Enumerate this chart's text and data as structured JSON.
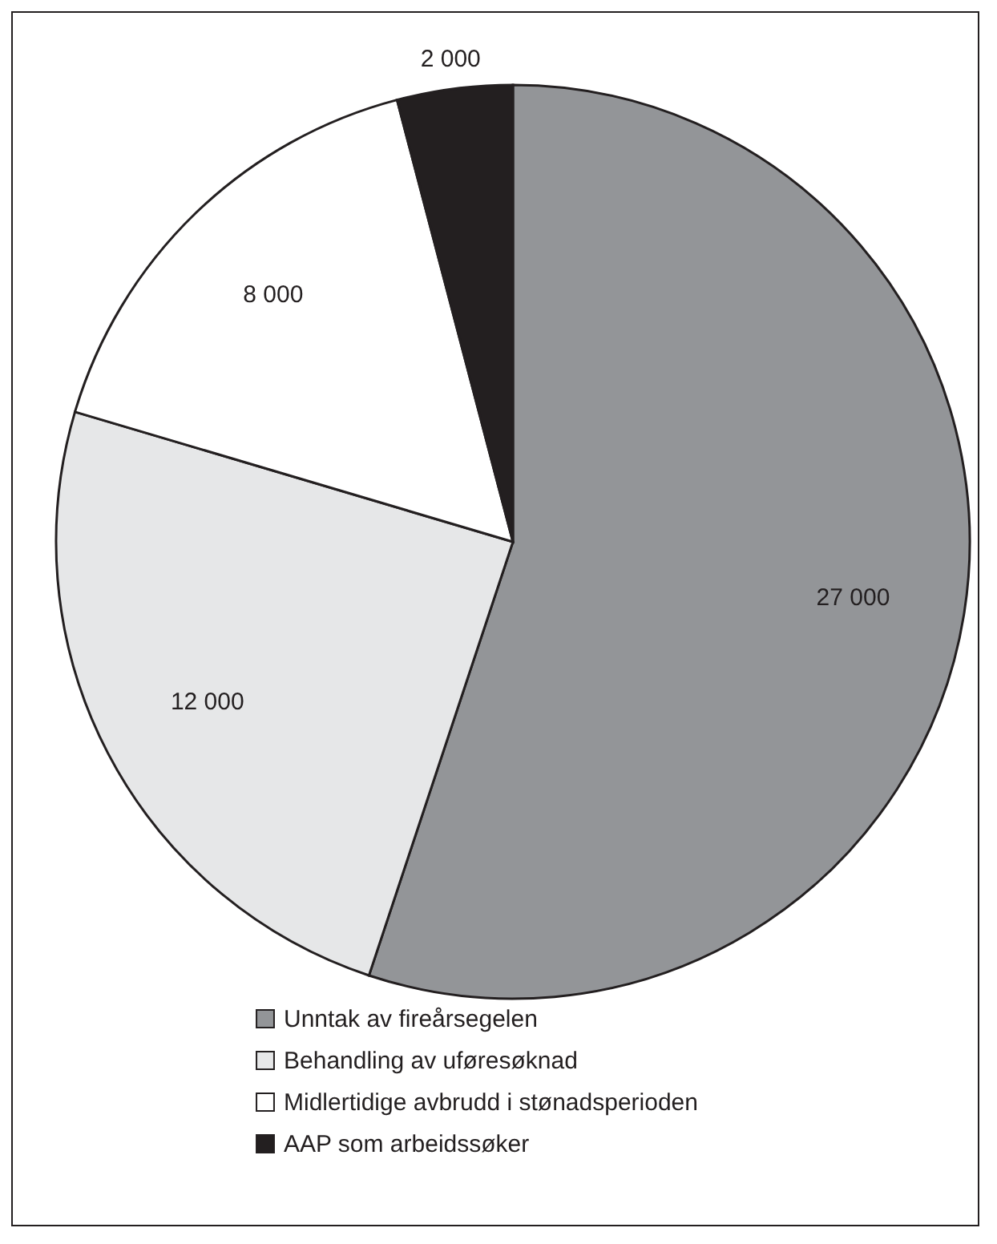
{
  "chart_data": {
    "type": "pie",
    "categories": [
      "Unntak av fireårsegelen",
      "Behandling av uføresøknad",
      "Midlertidige avbrudd i stønadsperioden",
      "AAP som arbeidssøker"
    ],
    "values": [
      27000,
      12000,
      8000,
      2000
    ],
    "value_labels": [
      "27 000",
      "12 000",
      "8 000",
      "2 000"
    ],
    "colors": [
      "#939598",
      "#e6e7e8",
      "#ffffff",
      "#231f20"
    ],
    "legend": "bottom"
  }
}
